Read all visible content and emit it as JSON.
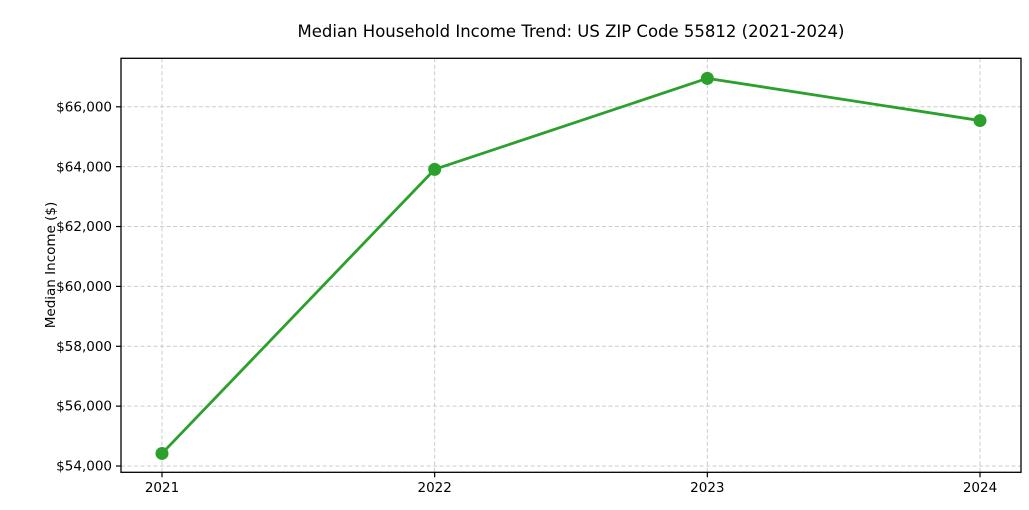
{
  "chart_data": {
    "type": "line",
    "title": "Median Household Income Trend: US ZIP Code 55812 (2021-2024)",
    "xlabel": "",
    "ylabel": "Median Income ($)",
    "x": [
      "2021",
      "2022",
      "2023",
      "2024"
    ],
    "series": [
      {
        "name": "Median Household Income",
        "values": [
          54420,
          63910,
          66950,
          65540
        ]
      }
    ],
    "yticks": [
      {
        "value": 54000,
        "label": "$54,000"
      },
      {
        "value": 56000,
        "label": "$56,000"
      },
      {
        "value": 58000,
        "label": "$58,000"
      },
      {
        "value": 60000,
        "label": "$60,000"
      },
      {
        "value": 62000,
        "label": "$62,000"
      },
      {
        "value": 64000,
        "label": "$64,000"
      },
      {
        "value": 66000,
        "label": "$66,000"
      }
    ],
    "ylim": [
      53790,
      67620
    ],
    "grid": true,
    "grid_style": "dashed",
    "legend_position": "none",
    "line_color": "#2ca02c",
    "marker": "circle",
    "marker_color": "#2ca02c",
    "grid_color": "#cccccc",
    "axis_color": "#000000",
    "background_color": "#ffffff"
  }
}
